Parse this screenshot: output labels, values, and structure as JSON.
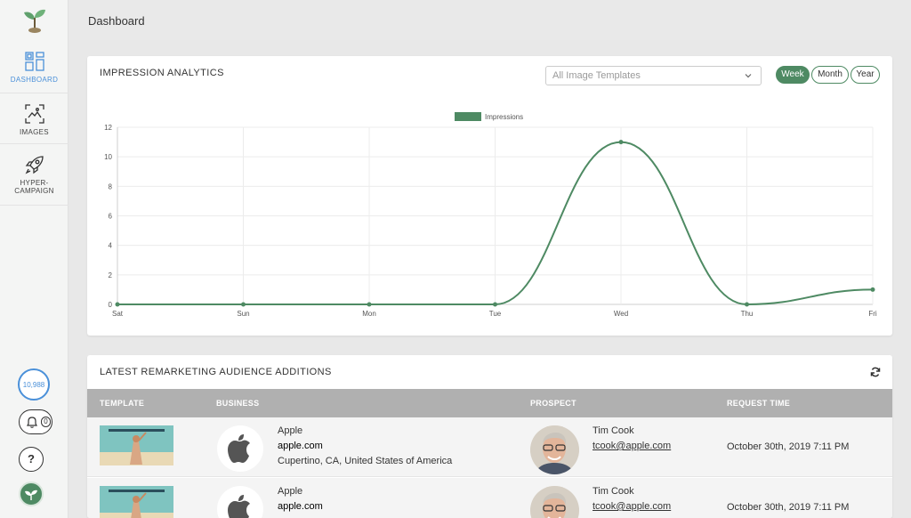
{
  "header": {
    "title": "Dashboard"
  },
  "sidebar": {
    "items": [
      {
        "label": "DASHBOARD",
        "icon": "dashboard-icon",
        "active": true
      },
      {
        "label": "IMAGES",
        "icon": "images-icon",
        "active": false
      },
      {
        "label_line1": "HYPER-",
        "label_line2": "CAMPAIGN",
        "icon": "rocket-icon",
        "active": false
      }
    ],
    "counter": "10,988",
    "notifications": "0",
    "help": "?"
  },
  "analytics": {
    "title": "IMPRESSION ANALYTICS",
    "template_select": {
      "placeholder": "All Image Templates"
    },
    "periods": [
      {
        "label": "Week",
        "active": true
      },
      {
        "label": "Month",
        "active": false
      },
      {
        "label": "Year",
        "active": false
      }
    ]
  },
  "chart_data": {
    "type": "line",
    "categories": [
      "Sat",
      "Sun",
      "Mon",
      "Tue",
      "Wed",
      "Thu",
      "Fri"
    ],
    "series": [
      {
        "name": "Impressions",
        "values": [
          0,
          0,
          0,
          0,
          11,
          0,
          1
        ],
        "color": "#4e8a63"
      }
    ],
    "ylim": [
      0,
      12
    ],
    "yticks": [
      0,
      2,
      4,
      6,
      8,
      10,
      12
    ],
    "grid": true,
    "legend": "top-center",
    "title": "",
    "xlabel": "",
    "ylabel": ""
  },
  "audience": {
    "title": "LATEST REMARKETING AUDIENCE ADDITIONS",
    "columns": [
      "TEMPLATE",
      "BUSINESS",
      "PROSPECT",
      "REQUEST TIME"
    ],
    "rows": [
      {
        "business_name": "Apple",
        "business_domain": "apple.com",
        "business_location": "Cupertino, CA, United States of America",
        "prospect_name": "Tim Cook",
        "prospect_email": "tcook@apple.com",
        "request_time": "October 30th, 2019 7:11 PM"
      },
      {
        "business_name": "Apple",
        "business_domain": "apple.com",
        "business_location": "",
        "prospect_name": "Tim Cook",
        "prospect_email": "tcook@apple.com",
        "request_time": "October 30th, 2019 7:11 PM"
      }
    ]
  },
  "colors": {
    "accent": "#4e8a63",
    "active_nav": "#4a90d9",
    "table_header": "#b0b0b0"
  }
}
